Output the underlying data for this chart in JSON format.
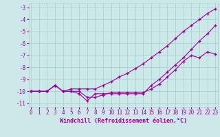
{
  "bg_color": "#cce8e8",
  "grid_color": "#aacccc",
  "line_color": "#990099",
  "marker": "+",
  "markersize": 3,
  "linewidth": 0.8,
  "xlabel": "Windchill (Refroidissement éolien,°C)",
  "xlabel_fontsize": 6,
  "yticks": [
    -11,
    -10,
    -9,
    -8,
    -7,
    -6,
    -5,
    -4,
    -3
  ],
  "xticks": [
    0,
    1,
    2,
    3,
    4,
    5,
    6,
    7,
    8,
    9,
    10,
    11,
    12,
    13,
    14,
    15,
    16,
    17,
    18,
    19,
    20,
    21,
    22,
    23
  ],
  "xlim": [
    -0.3,
    23.3
  ],
  "ylim": [
    -11.3,
    -2.6
  ],
  "tick_fontsize": 5.5,
  "line1_y": [
    -10.0,
    -10.0,
    -10.0,
    -9.5,
    -10.0,
    -10.0,
    -10.0,
    -10.5,
    -10.5,
    -10.3,
    -10.1,
    -10.1,
    -10.1,
    -10.1,
    -10.1,
    -9.8,
    -9.4,
    -8.8,
    -8.2,
    -7.5,
    -7.0,
    -7.2,
    -6.7,
    -6.9
  ],
  "line2_y": [
    -10.0,
    -10.0,
    -10.0,
    -9.5,
    -10.0,
    -10.0,
    -10.2,
    -10.8,
    -10.2,
    -10.2,
    -10.2,
    -10.2,
    -10.2,
    -10.2,
    -10.2,
    -9.5,
    -9.0,
    -8.4,
    -7.8,
    -7.2,
    -6.5,
    -5.8,
    -5.2,
    -4.5
  ],
  "line3_y": [
    -10.0,
    -10.0,
    -10.0,
    -9.5,
    -10.0,
    -9.8,
    -9.8,
    -9.8,
    -9.8,
    -9.5,
    -9.2,
    -8.8,
    -8.5,
    -8.1,
    -7.7,
    -7.2,
    -6.7,
    -6.2,
    -5.6,
    -5.0,
    -4.5,
    -4.0,
    -3.5,
    -3.1
  ]
}
